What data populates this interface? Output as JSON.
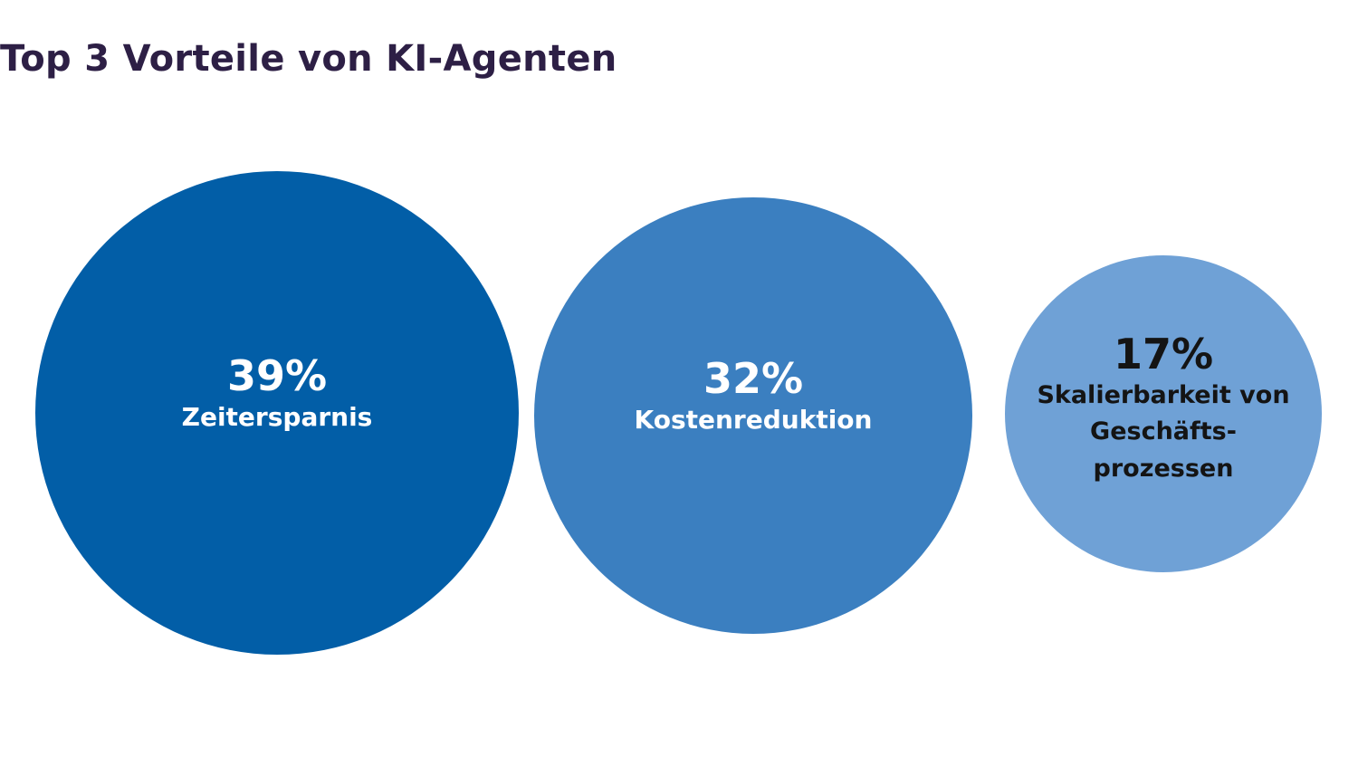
{
  "title": "Top 3 Vorteile von KI-Agenten",
  "bubbles": [
    {
      "value": "39%",
      "label": "Zeitersparnis",
      "color": "#025ea7"
    },
    {
      "value": "32%",
      "label": "Kostenreduktion",
      "color": "#3b7fc0"
    },
    {
      "value": "17%",
      "label_lines": [
        "Skalierbarkeit von",
        "Geschäfts-",
        "prozessen"
      ],
      "color": "#6fa1d6"
    }
  ],
  "chart_data": {
    "type": "bubble",
    "title": "Top 3 Vorteile von KI-Agenten",
    "categories": [
      "Zeitersparnis",
      "Kostenreduktion",
      "Skalierbarkeit von Geschäftsprozessen"
    ],
    "values": [
      39,
      32,
      17
    ],
    "unit": "%",
    "colors": [
      "#025ea7",
      "#3b7fc0",
      "#6fa1d6"
    ],
    "legend": "none",
    "grid": false
  }
}
